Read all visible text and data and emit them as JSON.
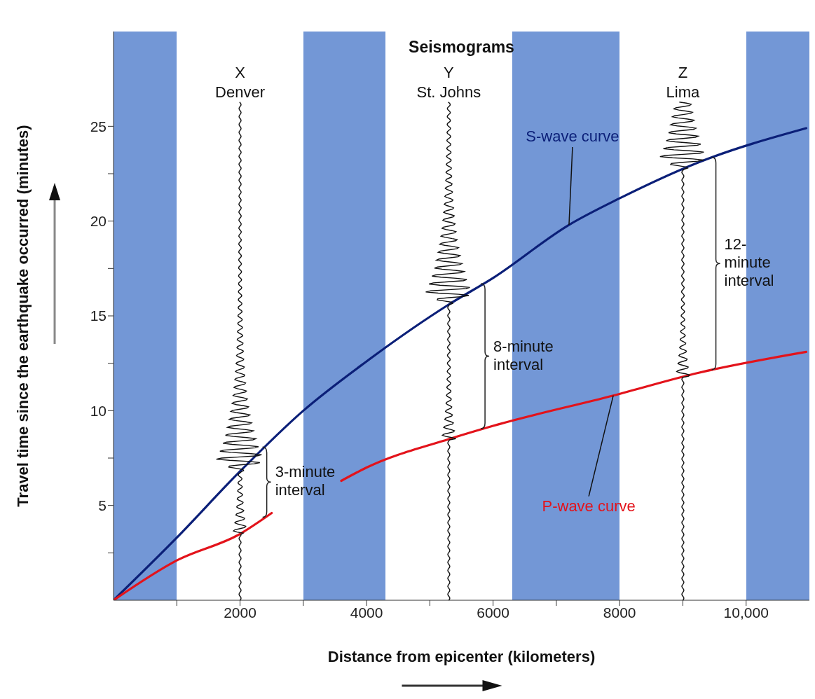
{
  "chart_data": {
    "type": "line",
    "title": "Seismograms",
    "xlabel": "Distance from epicenter (kilometers)",
    "ylabel": "Travel time since the earthquake occurred (minutes)",
    "xlim": [
      0,
      11000
    ],
    "xticks": [
      {
        "value": 1000,
        "label": null
      },
      2000,
      {
        "value": 3000,
        "label": null
      },
      4000,
      {
        "value": 5000,
        "label": null
      },
      6000,
      {
        "value": 7000,
        "label": null
      },
      8000,
      {
        "value": 9000,
        "label": null
      },
      {
        "value": 10000,
        "label": "10,000"
      }
    ],
    "ylim": [
      0,
      30
    ],
    "yticks": [
      {
        "value": 2.5,
        "label": null
      },
      5,
      {
        "value": 7.5,
        "label": null
      },
      10,
      {
        "value": 12.5,
        "label": null
      },
      15,
      {
        "value": 17.5,
        "label": null
      },
      20,
      {
        "value": 22.5,
        "label": null
      },
      25
    ],
    "series": [
      {
        "name": "S-wave curve",
        "color": "#0b1f78",
        "x": [
          0,
          1000,
          2000,
          3000,
          4000,
          5300,
          6000,
          7200,
          8000,
          9250,
          10950
        ],
        "values": [
          0,
          3.3,
          6.8,
          10,
          12.6,
          15.6,
          17,
          19.8,
          21.2,
          23.1,
          24.9
        ]
      },
      {
        "name": "P-wave curve",
        "color": "#e3131b",
        "x": [
          0,
          1000,
          2000,
          2500,
          3000,
          3600,
          4000,
          5300,
          6000,
          7900,
          9250,
          10950
        ],
        "values": [
          0,
          2.1,
          3.5,
          4.6,
          null,
          6.3,
          7,
          8.5,
          9.2,
          10.8,
          12,
          13.1
        ]
      }
    ],
    "bands": [
      {
        "axis": "x",
        "from": 0,
        "to": 1000,
        "color": "#7397d6"
      },
      {
        "axis": "x",
        "from": 3000,
        "to": 4300,
        "color": "#7397d6"
      },
      {
        "axis": "x",
        "from": 6300,
        "to": 8000,
        "color": "#7397d6"
      },
      {
        "axis": "x",
        "from": 10000,
        "to": 11000,
        "color": "#7397d6"
      },
      {
        "axis": "x",
        "from": 1000,
        "to": 3000,
        "label": "X\nDenver",
        "color": "#ffffff"
      },
      {
        "axis": "x",
        "from": 4300,
        "to": 6300,
        "label": "Y\nSt. Johns",
        "color": "#ffffff"
      },
      {
        "axis": "x",
        "from": 8000,
        "to": 10000,
        "label": "Z\nLima",
        "color": "#ffffff"
      }
    ],
    "annotations": [
      "3-minute\ninterval",
      "8-minute\ninterval",
      "12-\nminute\ninterval"
    ],
    "grid": false,
    "legend": false,
    "marker": "none",
    "line_style": "solid"
  }
}
